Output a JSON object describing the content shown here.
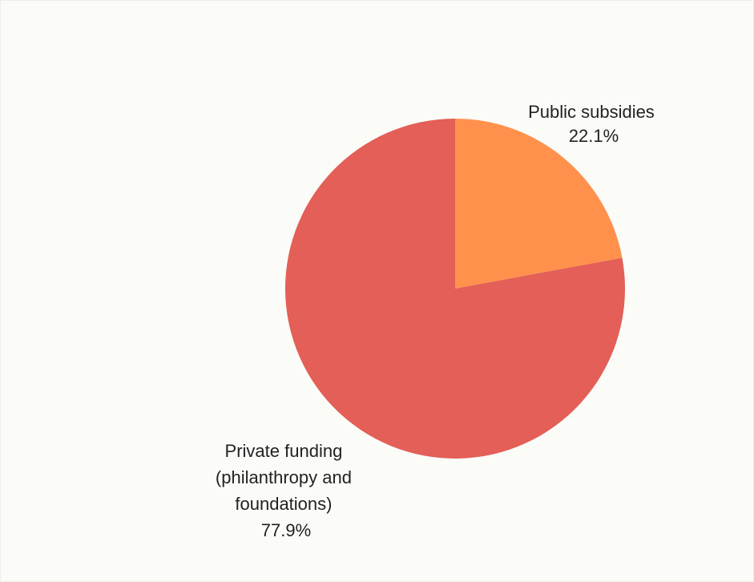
{
  "chart_data": {
    "type": "pie",
    "title": "",
    "start_angle_deg": 0,
    "direction": "clockwise",
    "slices": [
      {
        "label_lines": [
          "Public subsidies"
        ],
        "value": 22.1,
        "percent_label": "22.1%",
        "color": "#ff914d"
      },
      {
        "label_lines": [
          "Private funding",
          "(philanthropy and",
          "foundations)"
        ],
        "value": 77.9,
        "percent_label": "77.9%",
        "color": "#e35f57"
      }
    ]
  }
}
